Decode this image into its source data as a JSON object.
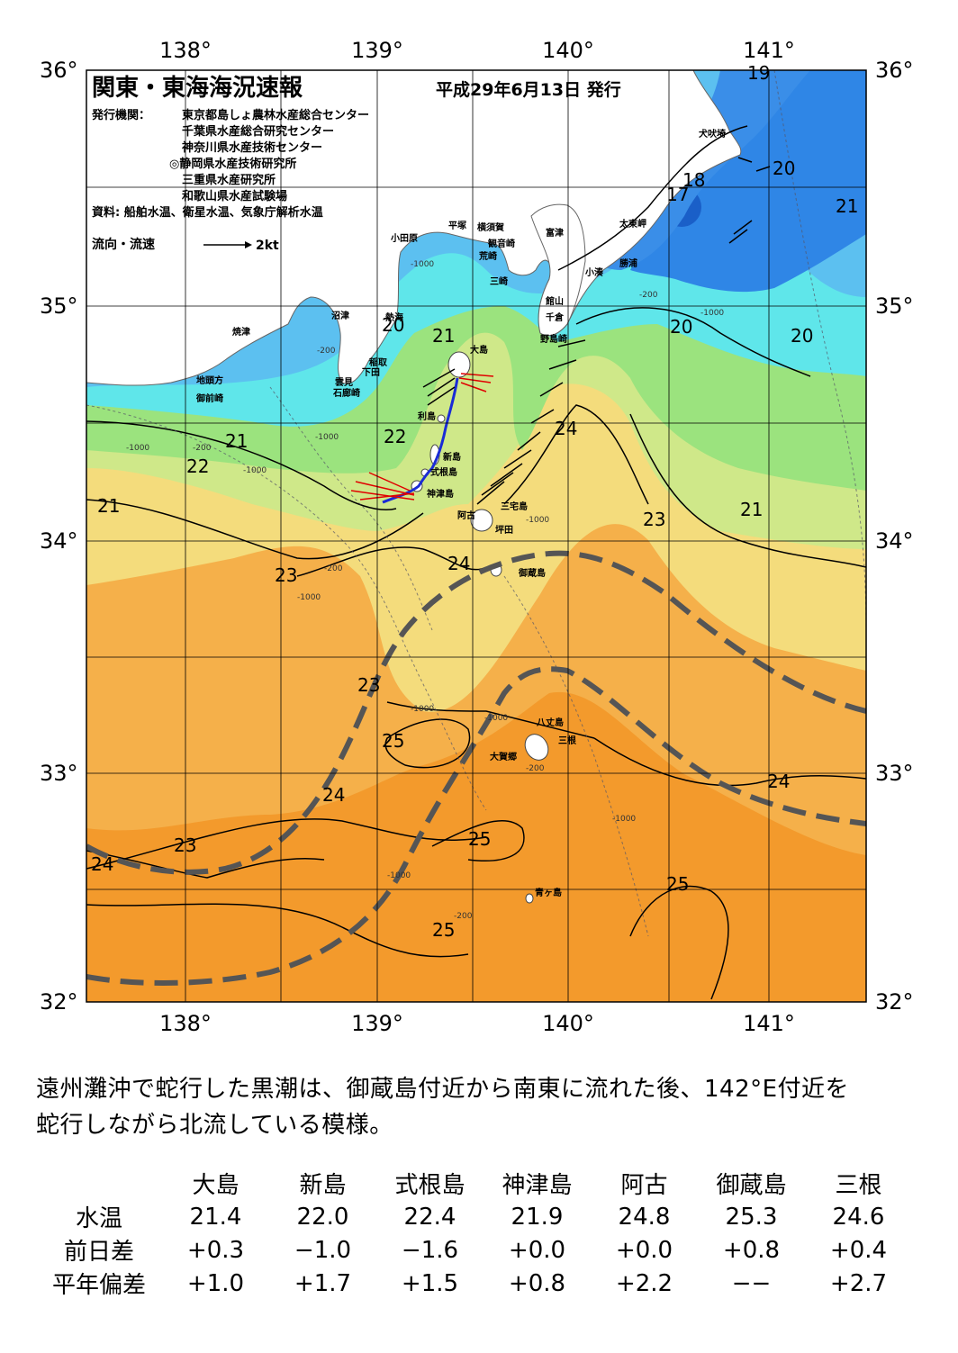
{
  "header": {
    "title": "関東・東海海況速報",
    "issued": "平成29年6月13日 発行",
    "publisher_label": "発行機関：",
    "publishers": [
      "東京都島しょ農林水産総合センター",
      "千葉県水産総合研究センター",
      "神奈川県水産技術センター",
      "◎静岡県水産技術研究所",
      "三重県水産研究所",
      "和歌山県水産試験場"
    ],
    "source": "資料: 船舶水温、衛星水温、気象庁解析水温",
    "legend_label": "流向・流速",
    "legend_scale": "2kt"
  },
  "axes": {
    "lon_labels": [
      "138°",
      "139°",
      "140°",
      "141°"
    ],
    "lat_labels": [
      "36°",
      "35°",
      "34°",
      "33°",
      "32°"
    ]
  },
  "colors": {
    "sea_cool": "#2f86e6",
    "sea_17": "#3a8ee8",
    "sea_20": "#5cc0f0",
    "sea_21": "#5fe6ea",
    "sea_22": "#9be37e",
    "sea_23": "#cfe889",
    "sea_24": "#f4dc7c",
    "sea_25": "#f5b04a",
    "sea_26": "#f39a2c",
    "land": "#ffffff",
    "kuroshio_axis": "#555555",
    "ship_track": "#1a2bd6"
  },
  "places": {
    "inubozaki": "犬吠埼",
    "taitomisaki": "太東岬",
    "katsuura": "勝浦",
    "kominato": "小湊",
    "futtsu": "富津",
    "yokosuka": "横須賀",
    "kannonzaki": "観音崎",
    "arasaki": "荒崎",
    "misaki": "三崎",
    "hiratsuka": "平塚",
    "odawara": "小田原",
    "tateyama": "館山",
    "chikura": "千倉",
    "nojimazaki": "野島崎",
    "numazu": "沼津",
    "yaizu": "焼津",
    "atami": "熱海",
    "inatori": "稲取",
    "shimoda": "下田",
    "mera": "雲見",
    "irozaki": "石廊崎",
    "jitokata": "地頭方",
    "omaezaki": "御前崎",
    "oshima": "大島",
    "toshima": "利島",
    "niijima": "新島",
    "shikinejima": "式根島",
    "kozushima": "神津島",
    "miyakejima": "三宅島",
    "ako": "阿古",
    "tsubota": "坪田",
    "mikurajima": "御蔵島",
    "hachijojima": "八丈島",
    "mitsune": "三根",
    "okago": "大賀郷",
    "aogashima": "青ヶ島"
  },
  "isotherm_labels": [
    "17",
    "18",
    "19",
    "20",
    "21",
    "22",
    "23",
    "24",
    "25"
  ],
  "depth_labels": [
    "-200",
    "-1000"
  ],
  "summary": {
    "line1": "遠州灘沖で蛇行した黒潮は、御蔵島付近から南東に流れた後、142°E付近を",
    "line2": "蛇行しながら北流している模様。"
  },
  "observations": {
    "row_labels": [
      "水温",
      "前日差",
      "平年偏差"
    ],
    "stations": [
      {
        "name": "大島",
        "temp": "21.4",
        "diff_day": "+0.3",
        "diff_normal": "+1.0"
      },
      {
        "name": "新島",
        "temp": "22.0",
        "diff_day": "−1.0",
        "diff_normal": "+1.7"
      },
      {
        "name": "式根島",
        "temp": "22.4",
        "diff_day": "−1.6",
        "diff_normal": "+1.5"
      },
      {
        "name": "神津島",
        "temp": "21.9",
        "diff_day": "+0.0",
        "diff_normal": "+0.8"
      },
      {
        "name": "阿古",
        "temp": "24.8",
        "diff_day": "+0.0",
        "diff_normal": "+2.2"
      },
      {
        "name": "御蔵島",
        "temp": "25.3",
        "diff_day": "+0.8",
        "diff_normal": "−−"
      },
      {
        "name": "三根",
        "temp": "24.6",
        "diff_day": "+0.4",
        "diff_normal": "+2.7"
      }
    ]
  }
}
